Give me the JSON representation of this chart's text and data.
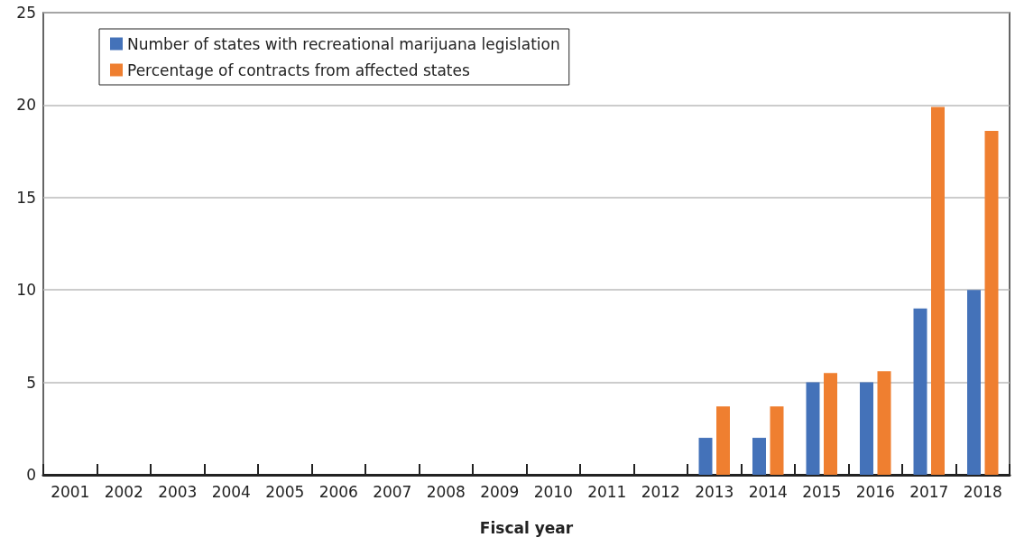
{
  "chart_data": {
    "type": "bar",
    "xlabel": "Fiscal year",
    "categories": [
      "2001",
      "2002",
      "2003",
      "2004",
      "2005",
      "2006",
      "2007",
      "2008",
      "2009",
      "2010",
      "2011",
      "2012",
      "2013",
      "2014",
      "2015",
      "2016",
      "2017",
      "2018"
    ],
    "series": [
      {
        "name": "Number of states with recreational marijuana legislation",
        "color": "#4472b9",
        "values": [
          0,
          0,
          0,
          0,
          0,
          0,
          0,
          0,
          0,
          0,
          0,
          0,
          2,
          2,
          5,
          5,
          9,
          10
        ]
      },
      {
        "name": "Percentage of contracts from affected states",
        "color": "#ef7f30",
        "values": [
          0,
          0,
          0,
          0,
          0,
          0,
          0,
          0,
          0,
          0,
          0,
          0,
          3.7,
          3.7,
          5.5,
          5.6,
          19.9,
          18.6
        ]
      }
    ],
    "ylim": [
      0,
      25
    ],
    "yticks": [
      0,
      5,
      10,
      15,
      20,
      25
    ],
    "grid": "y",
    "legend": "top left"
  }
}
